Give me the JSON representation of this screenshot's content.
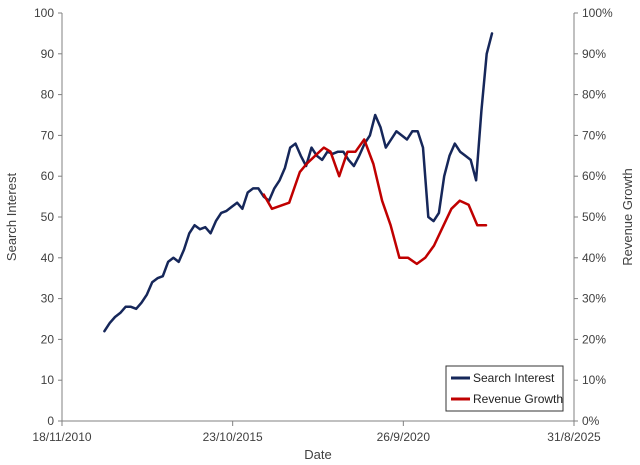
{
  "chart_data": {
    "type": "line",
    "xlabel": "Date",
    "ylabel": "Search Interest",
    "y2label": "Revenue Growth",
    "xlim": [
      "2010-11-18",
      "2025-08-31"
    ],
    "x_ticks": [
      "2010-11-18",
      "2015-10-23",
      "2020-09-26",
      "2025-08-31"
    ],
    "x_tick_labels": [
      "18/11/2010",
      "23/10/2015",
      "26/9/2020",
      "31/8/2025"
    ],
    "ylim": [
      0,
      100
    ],
    "y_ticks": [
      0,
      10,
      20,
      30,
      40,
      50,
      60,
      70,
      80,
      90,
      100
    ],
    "y2lim": [
      0,
      100
    ],
    "y2_ticks": [
      "0%",
      "10%",
      "20%",
      "30%",
      "40%",
      "50%",
      "60%",
      "70%",
      "80%",
      "90%",
      "100%"
    ],
    "grid": false,
    "legend": "bottom-right",
    "colors": {
      "search": "#16275a",
      "revenue": "#c00000"
    },
    "series": [
      {
        "name": "Search Interest",
        "axis": "left",
        "x": [
          "2012-02-08",
          "2012-04-04",
          "2012-05-30",
          "2012-07-25",
          "2012-09-19",
          "2012-11-14",
          "2013-01-09",
          "2013-03-06",
          "2013-05-01",
          "2013-06-26",
          "2013-08-21",
          "2013-10-16",
          "2013-12-11",
          "2014-02-05",
          "2014-04-02",
          "2014-05-28",
          "2014-07-23",
          "2014-09-17",
          "2014-11-12",
          "2015-01-07",
          "2015-03-04",
          "2015-04-29",
          "2015-06-24",
          "2015-08-19",
          "2015-10-14",
          "2015-12-09",
          "2016-02-03",
          "2016-03-30",
          "2016-05-25",
          "2016-07-20",
          "2016-09-14",
          "2016-11-09",
          "2017-01-04",
          "2017-03-01",
          "2017-04-26",
          "2017-06-21",
          "2017-08-16",
          "2017-10-11",
          "2017-12-06",
          "2018-01-31",
          "2018-03-28",
          "2018-05-23",
          "2018-07-18",
          "2018-09-12",
          "2018-11-07",
          "2019-01-02",
          "2019-02-27",
          "2019-04-24",
          "2019-06-19",
          "2019-08-14",
          "2019-10-09",
          "2019-12-04",
          "2020-01-29",
          "2020-03-25",
          "2020-05-20",
          "2020-07-15",
          "2020-09-09",
          "2020-11-04",
          "2020-12-30",
          "2021-02-24",
          "2021-04-21",
          "2021-06-16",
          "2021-08-11",
          "2021-10-06",
          "2021-12-01",
          "2022-01-26",
          "2022-03-23",
          "2022-05-18",
          "2022-07-13",
          "2022-09-07",
          "2022-11-02",
          "2022-12-28",
          "2023-02-22",
          "2023-04-19"
        ],
        "values": [
          22,
          24,
          25.5,
          26.5,
          28,
          28,
          27.5,
          29,
          31,
          34,
          35,
          35.5,
          39,
          40,
          39,
          42,
          46,
          48,
          47,
          47.5,
          46,
          49,
          51,
          51.5,
          52.5,
          53.5,
          52,
          56,
          57,
          57,
          55,
          54,
          57,
          59,
          62,
          67,
          68,
          65,
          62.5,
          67,
          65,
          64,
          66,
          65.5,
          66,
          66,
          64,
          62.5,
          65,
          68,
          70,
          75,
          72,
          67,
          69,
          71,
          70,
          69,
          71,
          71,
          67,
          50,
          49,
          51,
          60,
          65,
          68,
          66,
          65,
          64,
          59,
          76,
          90,
          95
        ]
      },
      {
        "name": "Revenue Growth",
        "axis": "right",
        "x": [
          "2016-09-15",
          "2016-12-10",
          "2017-06-10",
          "2017-09-30",
          "2017-12-10",
          "2018-03-10",
          "2018-06-10",
          "2018-08-20",
          "2018-11-20",
          "2019-02-15",
          "2019-05-10",
          "2019-08-10",
          "2019-11-15",
          "2020-02-15",
          "2020-05-15",
          "2020-08-15",
          "2020-11-15",
          "2021-02-15",
          "2021-05-15",
          "2021-08-15",
          "2021-11-15",
          "2022-02-15",
          "2022-05-15",
          "2022-08-15",
          "2022-11-15",
          "2023-02-15"
        ],
        "values": [
          55.5,
          52,
          53.5,
          61,
          63,
          65,
          67,
          66,
          60,
          66,
          66,
          69,
          63,
          54,
          48,
          40,
          40,
          38.5,
          40,
          43,
          47.5,
          52,
          54,
          53,
          48,
          48
        ]
      }
    ]
  },
  "legend": {
    "items": [
      {
        "label": "Search Interest",
        "color": "#16275a"
      },
      {
        "label": "Revenue Growth",
        "color": "#c00000"
      }
    ]
  }
}
